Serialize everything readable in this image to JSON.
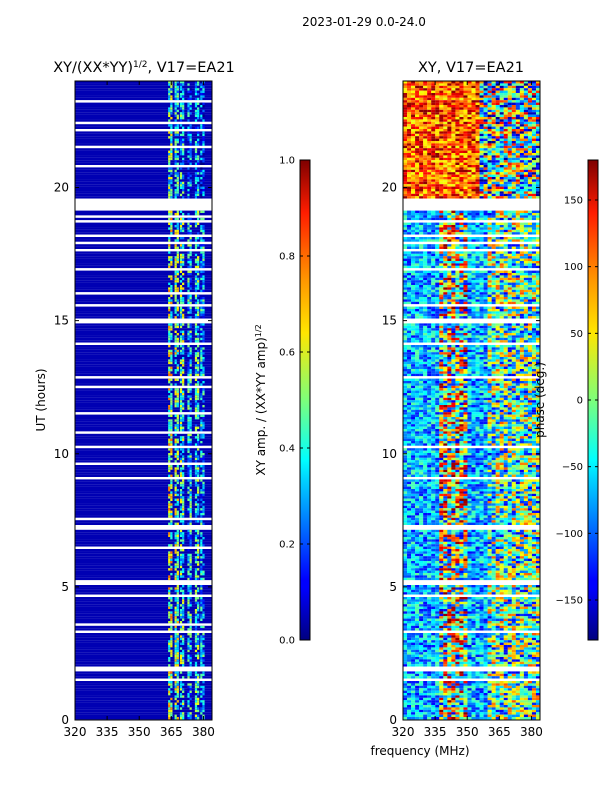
{
  "figure": {
    "suptitle": "2023-01-29 0.0-24.0"
  },
  "chart_data": [
    {
      "type": "heatmap",
      "title_main": "XY/(XX*YY)",
      "title_sup": "1/2",
      "title_rest": ", V17=EA21",
      "xlabel": "",
      "ylabel": "UT (hours)",
      "xlim": [
        320,
        384
      ],
      "ylim": [
        0,
        24
      ],
      "xticks": [
        320,
        335,
        350,
        365,
        380
      ],
      "yticks": [
        0,
        5,
        10,
        15,
        20
      ],
      "colorbar": {
        "label_main": "XY amp. / (XX*YY amp)",
        "label_sup": "1/2",
        "range": [
          0.0,
          1.0
        ],
        "ticks": [
          "0.0",
          "0.2",
          "0.4",
          "0.6",
          "0.8",
          "1.0"
        ],
        "tick_values": [
          0.0,
          0.2,
          0.4,
          0.6,
          0.8,
          1.0
        ],
        "colormap": "jet"
      },
      "background_value": 0.05,
      "flagged_time_ranges_hours": [
        [
          1.45,
          1.6
        ],
        [
          1.8,
          2.05
        ],
        [
          3.3,
          3.4
        ],
        [
          3.55,
          3.6
        ],
        [
          4.6,
          4.7
        ],
        [
          5.1,
          5.25
        ],
        [
          6.45,
          6.5
        ],
        [
          7.15,
          7.35
        ],
        [
          7.5,
          7.55
        ],
        [
          8.4,
          8.45
        ],
        [
          9.0,
          9.1
        ],
        [
          9.6,
          9.65
        ],
        [
          10.2,
          10.3
        ],
        [
          10.75,
          10.8
        ],
        [
          11.5,
          11.55
        ],
        [
          12.5,
          12.55
        ],
        [
          12.85,
          12.95
        ],
        [
          13.5,
          13.55
        ],
        [
          14.1,
          14.2
        ],
        [
          14.9,
          15.1
        ],
        [
          15.5,
          15.6
        ],
        [
          16.0,
          16.1
        ],
        [
          16.9,
          17.0
        ],
        [
          17.3,
          17.35
        ],
        [
          17.6,
          17.7
        ],
        [
          17.85,
          17.95
        ],
        [
          18.15,
          18.25
        ],
        [
          18.7,
          18.75
        ],
        [
          18.9,
          18.95
        ],
        [
          19.1,
          19.6
        ],
        [
          20.8,
          20.85
        ],
        [
          21.5,
          21.55
        ],
        [
          22.1,
          22.2
        ],
        [
          22.4,
          22.45
        ],
        [
          22.7,
          22.75
        ],
        [
          23.2,
          23.25
        ]
      ],
      "bright_channel_bands_mhz": [
        {
          "from": 363.5,
          "to": 365.5,
          "value": 0.55
        },
        {
          "from": 366.5,
          "to": 368.0,
          "value": 0.5
        },
        {
          "from": 369.0,
          "to": 371.0,
          "value": 0.45
        },
        {
          "from": 372.5,
          "to": 374.5,
          "value": 0.35
        },
        {
          "from": 376.0,
          "to": 378.0,
          "value": 0.4
        },
        {
          "from": 378.5,
          "to": 380.0,
          "value": 0.3
        }
      ]
    },
    {
      "type": "heatmap",
      "title_main": "XY, V17=EA21",
      "xlabel": "frequency (MHz)",
      "ylabel": "",
      "xlim": [
        320,
        384
      ],
      "ylim": [
        0,
        24
      ],
      "xticks": [
        320,
        335,
        350,
        365,
        380
      ],
      "yticks": [
        0,
        5,
        10,
        15,
        20
      ],
      "colorbar": {
        "label_main": "phase (deg.)",
        "range": [
          -180,
          180
        ],
        "ticks": [
          "−150",
          "−100",
          "−50",
          "0",
          "50",
          "100",
          "150"
        ],
        "tick_values": [
          -150,
          -100,
          -50,
          0,
          50,
          100,
          150
        ],
        "colormap": "jet"
      },
      "flagged_time_ranges_hours": [
        [
          1.45,
          1.6
        ],
        [
          1.8,
          2.05
        ],
        [
          3.3,
          3.4
        ],
        [
          4.6,
          4.7
        ],
        [
          5.1,
          5.25
        ],
        [
          7.15,
          7.35
        ],
        [
          9.0,
          9.1
        ],
        [
          10.2,
          10.3
        ],
        [
          12.85,
          12.95
        ],
        [
          14.1,
          14.2
        ],
        [
          14.9,
          15.1
        ],
        [
          15.5,
          15.6
        ],
        [
          16.9,
          17.0
        ],
        [
          17.6,
          17.7
        ],
        [
          17.85,
          17.95
        ],
        [
          18.15,
          18.25
        ],
        [
          18.7,
          18.75
        ],
        [
          19.1,
          19.6
        ]
      ],
      "phase_description": "noisy high-phase region after 19.6 UT; mixed turquoise/blue noise below"
    }
  ]
}
